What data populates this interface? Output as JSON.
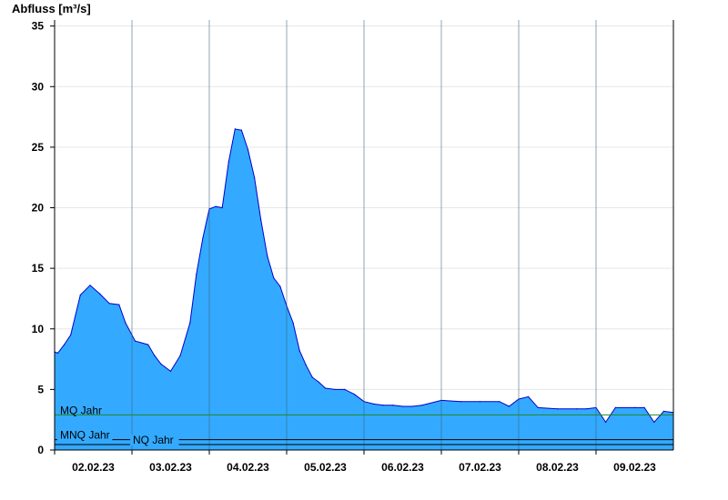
{
  "chart_data": {
    "type": "area",
    "ylabel": "Abfluss [m³/s]",
    "ylim": [
      0,
      35.5
    ],
    "yticks": [
      0,
      5,
      10,
      15,
      20,
      25,
      30,
      35
    ],
    "xlim": [
      "2023-02-01T12:00",
      "2023-02-09T12:00"
    ],
    "xticks": [
      "02.02.23",
      "03.02.23",
      "04.02.23",
      "05.02.23",
      "06.02.23",
      "07.02.23",
      "08.02.23",
      "09.02.23"
    ],
    "fill_color": "#33aaff",
    "line_color": "#0000cc",
    "grid": true,
    "reference_lines": [
      {
        "label": "MQ Jahr",
        "value": 2.9,
        "color": "#228822"
      },
      {
        "label": "MNQ Jahr",
        "value": 0.85,
        "color": "#000000"
      },
      {
        "label": "NQ Jahr",
        "value": 0.45,
        "color": "#000000"
      }
    ],
    "series": [
      {
        "x": [
          "2023-02-01T12:00",
          "2023-02-01T13:00",
          "2023-02-01T15:00",
          "2023-02-01T17:00",
          "2023-02-01T20:00",
          "2023-02-01T23:00",
          "2023-02-02T02:00",
          "2023-02-02T05:00",
          "2023-02-02T08:00",
          "2023-02-02T10:00",
          "2023-02-02T13:00",
          "2023-02-02T17:00",
          "2023-02-02T19:00",
          "2023-02-02T21:00",
          "2023-02-03T00:00",
          "2023-02-03T03:00",
          "2023-02-03T06:00",
          "2023-02-03T08:00",
          "2023-02-03T10:00",
          "2023-02-03T12:00",
          "2023-02-03T14:00",
          "2023-02-03T16:00",
          "2023-02-03T18:00",
          "2023-02-03T20:00",
          "2023-02-03T22:00",
          "2023-02-04T00:00",
          "2023-02-04T02:00",
          "2023-02-04T04:00",
          "2023-02-04T06:00",
          "2023-02-04T08:00",
          "2023-02-04T10:00",
          "2023-02-04T12:00",
          "2023-02-04T14:00",
          "2023-02-04T16:00",
          "2023-02-04T18:00",
          "2023-02-04T20:00",
          "2023-02-04T22:00",
          "2023-02-05T00:00",
          "2023-02-05T03:00",
          "2023-02-05T06:00",
          "2023-02-05T09:00",
          "2023-02-05T12:00",
          "2023-02-05T15:00",
          "2023-02-05T18:00",
          "2023-02-05T21:00",
          "2023-02-06T00:00",
          "2023-02-06T03:00",
          "2023-02-06T06:00",
          "2023-02-06T12:00",
          "2023-02-06T18:00",
          "2023-02-07T00:00",
          "2023-02-07T06:00",
          "2023-02-07T09:00",
          "2023-02-07T12:00",
          "2023-02-07T15:00",
          "2023-02-07T18:00",
          "2023-02-08T00:00",
          "2023-02-08T06:00",
          "2023-02-08T09:00",
          "2023-02-08T12:00",
          "2023-02-08T15:00",
          "2023-02-08T18:00",
          "2023-02-09T00:00",
          "2023-02-09T03:00",
          "2023-02-09T06:00",
          "2023-02-09T09:00",
          "2023-02-09T12:00"
        ],
        "values": [
          8.1,
          8.0,
          8.7,
          9.5,
          12.8,
          13.6,
          12.9,
          12.1,
          12.0,
          10.5,
          9.0,
          8.7,
          7.8,
          7.1,
          6.5,
          7.8,
          10.5,
          14.5,
          17.5,
          19.9,
          20.1,
          20.0,
          23.8,
          26.5,
          26.4,
          24.8,
          22.5,
          19.0,
          16.0,
          14.2,
          13.5,
          11.9,
          10.5,
          8.2,
          7.0,
          6.0,
          5.6,
          5.1,
          5.0,
          5.0,
          4.6,
          4.0,
          3.8,
          3.7,
          3.7,
          3.6,
          3.6,
          3.7,
          4.1,
          4.0,
          4.0,
          4.0,
          3.6,
          4.2,
          4.4,
          3.5,
          3.4,
          3.4,
          3.4,
          3.5,
          2.3,
          3.5,
          3.5,
          3.5,
          2.3,
          3.2,
          3.1
        ]
      }
    ]
  }
}
